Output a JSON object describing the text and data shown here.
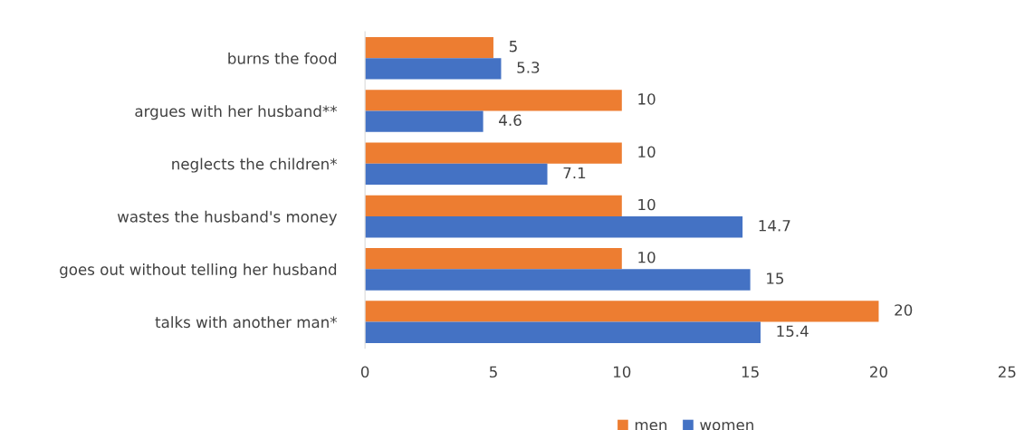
{
  "chart_data": {
    "type": "bar",
    "orientation": "horizontal",
    "categories": [
      "burns the food",
      "argues with her husband**",
      "neglects the children*",
      "wastes the husband's money",
      "goes out without telling her husband",
      "talks with another man*"
    ],
    "series": [
      {
        "name": "men",
        "color": "#ed7d31",
        "values": [
          5,
          10,
          10,
          10,
          10,
          20
        ]
      },
      {
        "name": "women",
        "color": "#4472c4",
        "values": [
          5.3,
          4.6,
          7.1,
          14.7,
          15,
          15.4
        ]
      }
    ],
    "xlim": [
      0,
      25
    ],
    "xticks": [
      0,
      5,
      10,
      15,
      20,
      25
    ],
    "data_labels": true,
    "grid": false,
    "legend": "bottom"
  }
}
